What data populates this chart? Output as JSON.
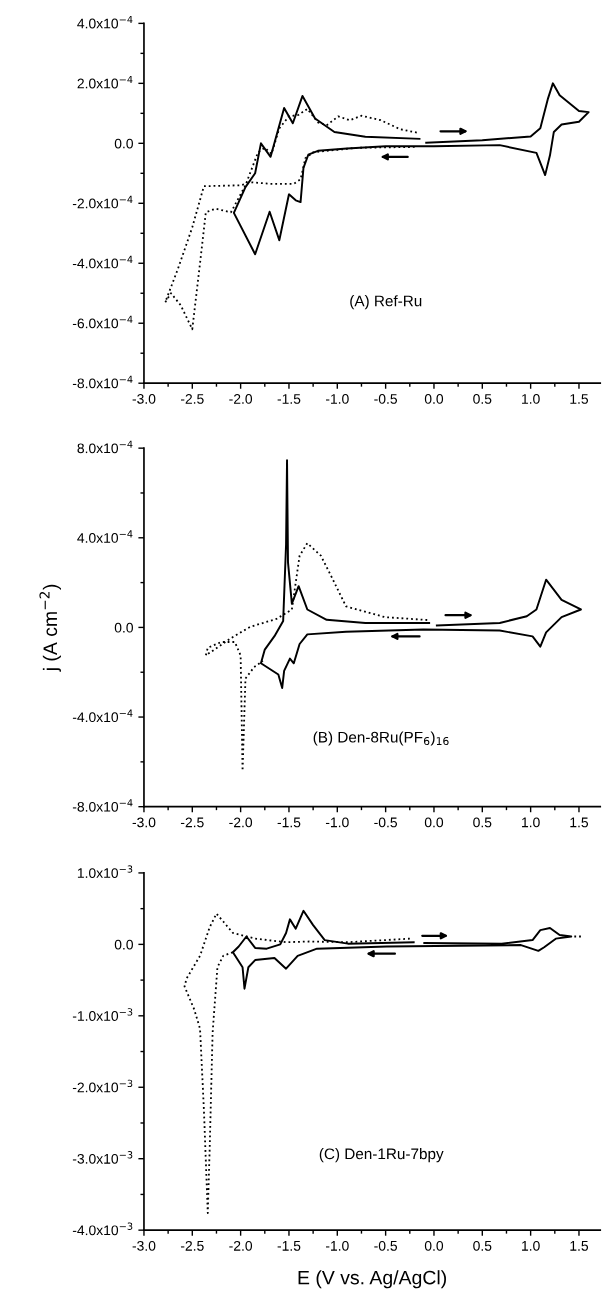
{
  "chart_data": [
    {
      "type": "line",
      "annotations": [
        "(A) Ref-Ru"
      ],
      "xlim": [
        -3.0,
        1.72
      ],
      "ylim": [
        -0.0008,
        0.0004
      ],
      "xticks": [
        {
          "value": -3.0,
          "label": "-3.0"
        },
        -2.5,
        {
          "value": -2.0,
          "label": "-2.0"
        },
        -1.5,
        {
          "value": -1.0,
          "label": "-1.0"
        },
        -0.5,
        {
          "value": 0.0,
          "label": "0.0"
        },
        0.5,
        {
          "value": 1.0,
          "label": "1.0"
        },
        1.5,
        {
          "value": -2.75,
          "label": null
        },
        {
          "value": -2.25,
          "label": null
        },
        {
          "value": -1.75,
          "label": null
        },
        {
          "value": -1.25,
          "label": null
        },
        {
          "value": -0.75,
          "label": null
        },
        {
          "value": -0.25,
          "label": null
        },
        {
          "value": 0.25,
          "label": null
        },
        {
          "value": 0.75,
          "label": null
        },
        {
          "value": 1.25,
          "label": null
        }
      ],
      "yticks": [
        {
          "value": 0.0004,
          "label": "4.0x10$^{−4}$"
        },
        {
          "value": 0.0002,
          "label": "2.0x10$^{−4}$"
        },
        {
          "value": 0.0,
          "label": "0.0"
        },
        {
          "value": -0.0002,
          "label": "-2.0x10$^{−4}$"
        },
        {
          "value": -0.0004,
          "label": "-4.0x10$^{−4}$"
        },
        {
          "value": -0.0006,
          "label": "-6.0x10$^{−4}$"
        },
        {
          "value": -0.0008,
          "label": "-8.0x10$^{−4}$"
        },
        {
          "value": 0.0003,
          "label": null
        },
        {
          "value": 0.0001,
          "label": null
        },
        {
          "value": -0.0001,
          "label": null
        },
        {
          "value": -0.0003,
          "label": null
        },
        {
          "value": -0.0005,
          "label": null
        },
        {
          "value": -0.0007,
          "label": null
        }
      ],
      "series": [
        {
          "color": "#000000",
          "line_style": "solid",
          "x": [
            -0.08,
            0.5,
            1.0,
            1.1,
            1.18,
            1.23,
            1.3,
            1.5,
            1.6,
            1.5,
            1.32,
            1.24,
            1.2,
            1.15,
            1.06,
            0.68,
            0.0,
            -0.5,
            -0.9,
            -1.2,
            -1.3,
            -1.35,
            -1.38,
            -1.43,
            -1.5,
            -1.6,
            -1.7,
            -1.85,
            -2.07,
            -1.95,
            -1.85,
            -1.79,
            -1.69,
            -1.55,
            -1.46,
            -1.36,
            -1.23,
            -1.03,
            -0.71,
            -0.15
          ],
          "values": [
            2e-06,
            1e-05,
            2.3e-05,
            5e-05,
            0.00015,
            0.0002,
            0.00016,
            0.000108,
            0.000104,
            7.2e-05,
            6.3e-05,
            3.8e-05,
            -4e-05,
            -0.000106,
            -3.2e-05,
            -6e-06,
            -1e-05,
            -1e-05,
            -1.7e-05,
            -2.5e-05,
            -3.8e-05,
            -8.2e-05,
            -0.000196,
            -0.00019,
            -0.00017,
            -0.000323,
            -0.000228,
            -0.00037,
            -0.000232,
            -0.000146,
            -0.0001,
            0.0,
            -4.5e-05,
            0.000118,
            6.7e-05,
            0.000158,
            8.3e-05,
            3.8e-05,
            2.2e-05,
            1.5e-05
          ]
        },
        {
          "color": "#000000",
          "line_style": "dotted",
          "x": [
            -0.2,
            -0.8,
            -1.25,
            -1.33,
            -1.38,
            -1.45,
            -1.7,
            -1.88,
            -2.0,
            -2.38,
            -2.5,
            -2.65,
            -2.78,
            -2.72,
            -2.62,
            -2.5,
            -2.42,
            -2.36,
            -2.26,
            -2.1,
            -1.95,
            -1.82,
            -1.75,
            -1.68,
            -1.6,
            -1.5,
            -1.4,
            -1.31,
            -1.2,
            -1.11,
            -0.99,
            -0.87,
            -0.75,
            -0.55,
            -0.35,
            -0.15
          ],
          "values": [
            -1.2e-05,
            -1.5e-05,
            -3e-05,
            -5e-05,
            -0.00012,
            -0.000135,
            -0.000135,
            -0.00013,
            -0.00014,
            -0.000143,
            -0.00028,
            -0.00042,
            -0.00053,
            -0.0005,
            -0.00054,
            -0.00062,
            -0.0004,
            -0.00023,
            -0.000218,
            -0.00023,
            -0.00014,
            -3e-05,
            -1.5e-05,
            -3.5e-05,
            5e-05,
            9e-05,
            9.5e-05,
            0.000115,
            7e-05,
            6e-05,
            9e-05,
            7.7e-05,
            9.2e-05,
            7.7e-05,
            4.7e-05,
            3.4e-05
          ]
        }
      ]
    },
    {
      "type": "line",
      "ylabel": "j (A cm$^{−2}$)",
      "annotations": [
        "(B) Den-8Ru(PF$_{6}$)$_{16}$"
      ],
      "xlim": [
        -3.0,
        1.72
      ],
      "ylim": [
        -0.0008,
        0.0008
      ],
      "xticks": [
        {
          "value": -3.0,
          "label": "-3.0"
        },
        -2.5,
        {
          "value": -2.0,
          "label": "-2.0"
        },
        -1.5,
        {
          "value": -1.0,
          "label": "-1.0"
        },
        -0.5,
        {
          "value": 0.0,
          "label": "0.0"
        },
        0.5,
        {
          "value": 1.0,
          "label": "1.0"
        },
        1.5,
        {
          "value": -2.75,
          "label": null
        },
        {
          "value": -2.25,
          "label": null
        },
        {
          "value": -1.75,
          "label": null
        },
        {
          "value": -1.25,
          "label": null
        },
        {
          "value": -0.75,
          "label": null
        },
        {
          "value": -0.25,
          "label": null
        },
        {
          "value": 0.25,
          "label": null
        },
        {
          "value": 0.75,
          "label": null
        },
        {
          "value": 1.25,
          "label": null
        }
      ],
      "yticks": [
        {
          "value": 0.0008,
          "label": "8.0x10$^{−4}$"
        },
        {
          "value": 0.0004,
          "label": "4.0x10$^{−4}$"
        },
        {
          "value": 0.0,
          "label": "0.0"
        },
        {
          "value": -0.0004,
          "label": "-4.0x10$^{−4}$"
        },
        {
          "value": -0.0008,
          "label": "-8.0x10$^{−4}$"
        },
        {
          "value": 0.0006,
          "label": null
        },
        {
          "value": 0.0002,
          "label": null
        },
        {
          "value": -0.0002,
          "label": null
        },
        {
          "value": -0.0006,
          "label": null
        }
      ],
      "series": [
        {
          "color": "#000000",
          "line_style": "solid",
          "x": [
            0.03,
            0.68,
            0.96,
            1.06,
            1.16,
            1.32,
            1.52,
            1.32,
            1.16,
            1.1,
            1.02,
            0.68,
            -0.11,
            -0.91,
            -1.31,
            -1.39,
            -1.45,
            -1.49,
            -1.55,
            -1.57,
            -1.61,
            -1.79,
            -1.75,
            -1.65,
            -1.56,
            -1.53,
            -1.52,
            -1.51,
            -1.47,
            -1.4,
            -1.31,
            -1.11,
            -0.71,
            -0.05
          ],
          "values": [
            9e-06,
            2e-05,
            5e-05,
            8e-05,
            0.000213,
            0.000123,
            8e-05,
            4.6e-05,
            -2.2e-05,
            -8.6e-05,
            -4e-05,
            -1.4e-05,
            -9e-06,
            -1.9e-05,
            -3.1e-05,
            -7.4e-05,
            -0.00016,
            -0.000139,
            -0.000194,
            -0.00027,
            -0.00021,
            -0.00016,
            -9.9e-05,
            -3.9e-05,
            2.9e-05,
            0.00037,
            0.000746,
            0.00029,
            0.000106,
            0.000184,
            8e-05,
            3.4e-05,
            2e-05,
            2e-05
          ]
        },
        {
          "color": "#000000",
          "line_style": "dotted",
          "x": [
            -0.07,
            -0.51,
            -0.91,
            -1.07,
            -1.17,
            -1.31,
            -1.39,
            -1.47,
            -1.63,
            -1.9,
            -2.1,
            -2.36,
            -2.34,
            -2.2,
            -2.06,
            -2.0,
            -1.98,
            -1.95,
            -1.86,
            -1.77
          ],
          "values": [
            3.3e-05,
            4.6e-05,
            9.4e-05,
            0.000235,
            0.00032,
            0.000376,
            0.00032,
            8e-05,
            3.8e-05,
            3e-06,
            -4.8e-05,
            -0.000125,
            -9.1e-05,
            -6.5e-05,
            -6.5e-05,
            -0.000125,
            -0.00064,
            -0.000228,
            -0.000177,
            -0.00015
          ]
        }
      ]
    },
    {
      "type": "line",
      "xlabel": "E (V vs. Ag/AgCl)",
      "annotations": [
        "(C) Den-1Ru-7bpy"
      ],
      "xlim": [
        -3.0,
        1.72
      ],
      "ylim": [
        -0.004,
        0.001
      ],
      "xticks": [
        {
          "value": -3.0,
          "label": "-3.0"
        },
        -2.5,
        {
          "value": -2.0,
          "label": "-2.0"
        },
        -1.5,
        {
          "value": -1.0,
          "label": "-1.0"
        },
        -0.5,
        {
          "value": 0.0,
          "label": "0.0"
        },
        0.5,
        {
          "value": 1.0,
          "label": "1.0"
        },
        1.5,
        {
          "value": -2.75,
          "label": null
        },
        {
          "value": -2.25,
          "label": null
        },
        {
          "value": -1.75,
          "label": null
        },
        {
          "value": -1.25,
          "label": null
        },
        {
          "value": -0.75,
          "label": null
        },
        {
          "value": -0.25,
          "label": null
        },
        {
          "value": 0.25,
          "label": null
        },
        {
          "value": 0.75,
          "label": null
        },
        {
          "value": 1.25,
          "label": null
        }
      ],
      "yticks": [
        {
          "value": 0.001,
          "label": "1.0x10$^{−3}$"
        },
        {
          "value": 0.0,
          "label": "0.0"
        },
        {
          "value": -0.001,
          "label": "-1.0x10$^{−3}$"
        },
        {
          "value": -0.002,
          "label": "-2.0x10$^{−3}$"
        },
        {
          "value": -0.003,
          "label": "-3.0x10$^{−3}$"
        },
        {
          "value": -0.004,
          "label": "-4.0x10$^{−3}$"
        },
        {
          "value": 0.0005,
          "label": null
        },
        {
          "value": -0.0005,
          "label": null
        },
        {
          "value": -0.0015,
          "label": null
        },
        {
          "value": -0.0025,
          "label": null
        },
        {
          "value": -0.0035,
          "label": null
        }
      ],
      "series": [
        {
          "color": "#000000",
          "line_style": "solid",
          "x": [
            -0.1,
            0.7,
            1.02,
            1.1,
            1.2,
            1.3,
            1.42,
            1.26,
            1.14,
            1.08,
            0.9,
            -0.49,
            -1.21,
            -1.41,
            -1.53,
            -1.65,
            -1.85,
            -1.92,
            -1.96,
            -1.98,
            -2.08,
            -2.02,
            -1.94,
            -1.85,
            -1.73,
            -1.59,
            -1.53,
            -1.49,
            -1.43,
            -1.35,
            -1.25,
            -1.13,
            -0.89,
            -0.21
          ],
          "values": [
            2e-05,
            1e-05,
            6e-05,
            0.0002,
            0.00023,
            0.00013,
            0.00011,
            8e-05,
            -4e-05,
            -9e-05,
            -1e-05,
            -3e-05,
            -6e-05,
            -0.00016,
            -0.00034,
            -0.00019,
            -0.00022,
            -0.00032,
            -0.00062,
            -0.00032,
            -0.00011,
            -3e-05,
            0.00011,
            -5e-05,
            -6e-05,
            0.0,
            0.00016,
            0.00035,
            0.00022,
            0.00047,
            0.00027,
            6e-05,
            1e-05,
            3e-05
          ]
        },
        {
          "color": "#000000",
          "line_style": "dotted",
          "x": [
            1.52,
            1.42
          ],
          "values": [
            0.00011,
            0.00011
          ]
        },
        {
          "color": "#000000",
          "line_style": "dotted",
          "x": [
            -0.25,
            -0.89,
            -1.29,
            -1.53,
            -1.85,
            -2.08,
            -2.18,
            -2.25,
            -2.32,
            -2.42,
            -2.56,
            -2.58,
            -2.48,
            -2.42,
            -2.38,
            -2.34,
            -2.32,
            -2.29,
            -2.24,
            -2.18,
            -2.08
          ],
          "values": [
            8e-05,
            3e-05,
            4e-05,
            3e-05,
            8e-05,
            0.00016,
            0.00032,
            0.00043,
            0.00024,
            -0.00016,
            -0.00048,
            -0.00059,
            -0.00091,
            -0.00118,
            -0.00231,
            -0.00376,
            -0.00285,
            -0.00124,
            -0.00032,
            -0.00016,
            -0.00011
          ]
        }
      ]
    }
  ]
}
